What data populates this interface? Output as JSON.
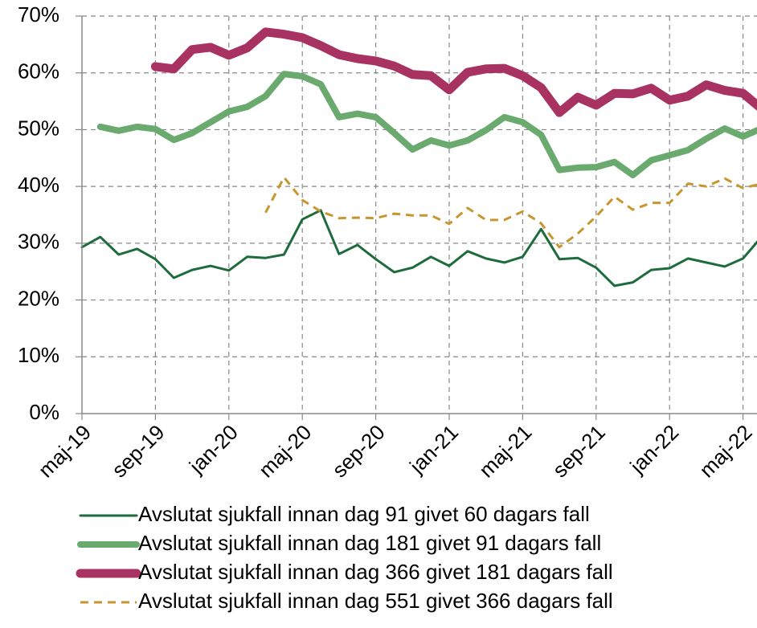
{
  "chart_data": {
    "type": "line",
    "categories": [
      "maj-19",
      null,
      null,
      null,
      "sep-19",
      null,
      null,
      null,
      "jan-20",
      null,
      null,
      null,
      "maj-20",
      null,
      null,
      null,
      "sep-20",
      null,
      null,
      null,
      "jan-21",
      null,
      null,
      null,
      "maj-21",
      null,
      null,
      null,
      "sep-21",
      null,
      null,
      null,
      "jan-22",
      null,
      null,
      null,
      "maj-22",
      null
    ],
    "ylim": [
      0,
      70
    ],
    "yticks": [
      {
        "value": 0,
        "label": "0%"
      },
      {
        "value": 10,
        "label": "10%"
      },
      {
        "value": 20,
        "label": "20%"
      },
      {
        "value": 30,
        "label": "30%"
      },
      {
        "value": 40,
        "label": "40%"
      },
      {
        "value": 50,
        "label": "50%"
      },
      {
        "value": 60,
        "label": "60%"
      },
      {
        "value": 70,
        "label": "70%"
      }
    ],
    "grid": true,
    "series": [
      {
        "name": "Avslutat sjukfall innan dag 91 givet 60 dagars fall",
        "color": "#1e6b3c",
        "width": 3,
        "dashed": false,
        "values": [
          29.3,
          31.1,
          28.0,
          29.0,
          27.2,
          23.9,
          25.3,
          26.0,
          25.2,
          27.6,
          27.4,
          28.0,
          34.2,
          35.8,
          28.1,
          29.7,
          27.2,
          24.9,
          25.7,
          27.6,
          26.0,
          28.6,
          27.3,
          26.6,
          27.6,
          32.5,
          27.2,
          27.4,
          25.7,
          22.5,
          23.1,
          25.3,
          25.6,
          27.3,
          26.6,
          25.9,
          27.3,
          31.1
        ]
      },
      {
        "name": "Avslutat sjukfall innan dag 181 givet 91 dagars fall",
        "color": "#6aaa6e",
        "width": 8,
        "dashed": false,
        "values": [
          null,
          50.5,
          49.8,
          50.5,
          50.1,
          48.2,
          49.4,
          51.3,
          53.2,
          54.0,
          55.9,
          59.8,
          59.4,
          58.0,
          52.2,
          52.8,
          52.2,
          49.4,
          46.5,
          48.1,
          47.2,
          48.1,
          49.9,
          52.2,
          51.3,
          49.1,
          42.9,
          43.3,
          43.4,
          44.3,
          42.0,
          44.6,
          45.5,
          46.4,
          48.4,
          50.2,
          48.8,
          50.2
        ]
      },
      {
        "name": "Avslutat sjukfall innan dag 366 givet 181 dagars fall",
        "color": "#a83262",
        "width": 11,
        "dashed": false,
        "values": [
          null,
          null,
          null,
          null,
          61.1,
          60.7,
          64.1,
          64.5,
          63.1,
          64.4,
          67.2,
          66.8,
          66.2,
          64.8,
          63.2,
          62.5,
          62.1,
          61.2,
          59.7,
          59.5,
          57.0,
          60.1,
          60.7,
          60.8,
          59.5,
          57.4,
          53.0,
          55.7,
          54.3,
          56.4,
          56.3,
          57.3,
          55.2,
          55.9,
          57.9,
          56.9,
          56.4,
          53.7
        ]
      },
      {
        "name": "Avslutat sjukfall innan dag 551 givet 366 dagars fall",
        "color": "#c8962e",
        "width": 3,
        "dashed": true,
        "values": [
          null,
          null,
          null,
          null,
          null,
          null,
          null,
          null,
          null,
          null,
          35.4,
          41.6,
          37.6,
          35.6,
          34.4,
          34.5,
          34.4,
          35.2,
          34.9,
          34.9,
          33.4,
          36.2,
          34.1,
          34.1,
          35.6,
          33.5,
          29.3,
          31.7,
          34.7,
          38.2,
          35.9,
          37.1,
          37.1,
          40.5,
          40.0,
          41.4,
          39.7,
          40.5
        ]
      }
    ]
  }
}
